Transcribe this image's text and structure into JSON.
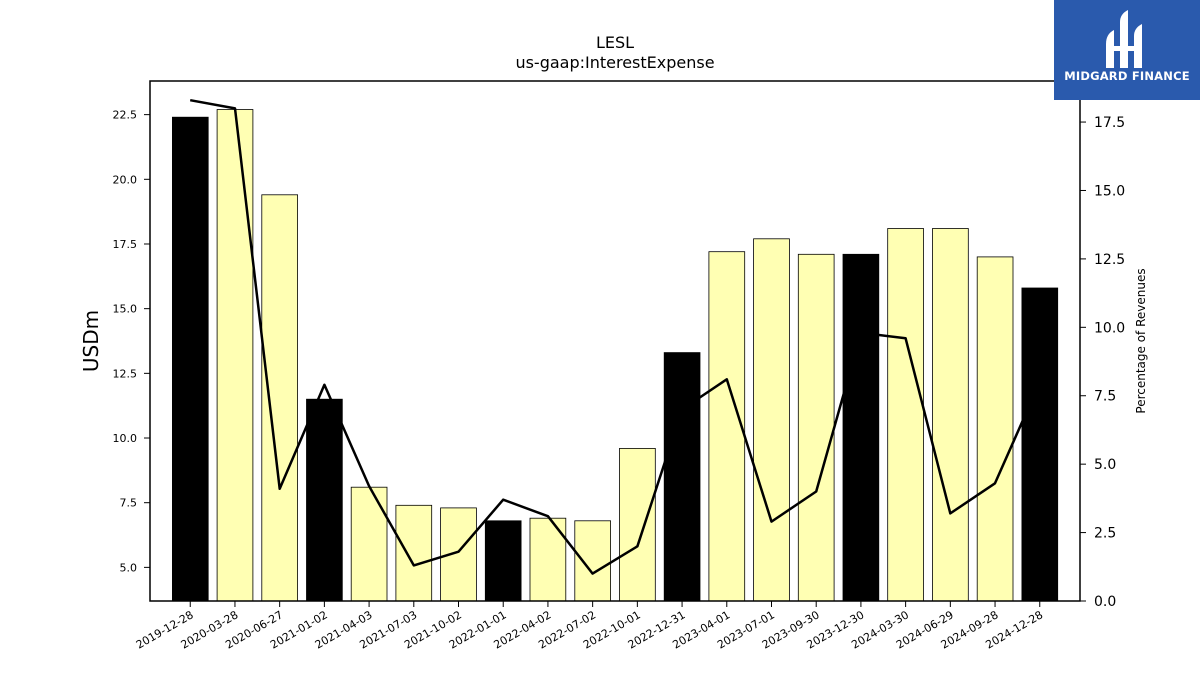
{
  "chart_data": {
    "type": "bar",
    "title": "LESL",
    "subtitle": "us-gaap:InterestExpense",
    "ylabel": "USDm",
    "y2label": "Percentage of Revenues",
    "ylim": [
      3.7,
      23.8
    ],
    "y2lim": [
      0,
      19
    ],
    "yticks": [
      5.0,
      7.5,
      10.0,
      12.5,
      15.0,
      17.5,
      20.0,
      22.5
    ],
    "y2ticks": [
      0.0,
      2.5,
      5.0,
      7.5,
      10.0,
      12.5,
      15.0,
      17.5
    ],
    "categories": [
      "2019-12-28",
      "2020-03-28",
      "2020-06-27",
      "2021-01-02",
      "2021-04-03",
      "2021-07-03",
      "2021-10-02",
      "2022-01-01",
      "2022-04-02",
      "2022-07-02",
      "2022-10-01",
      "2022-12-31",
      "2023-04-01",
      "2023-07-01",
      "2023-09-30",
      "2023-12-30",
      "2024-03-30",
      "2024-06-29",
      "2024-09-28",
      "2024-12-28"
    ],
    "series": [
      {
        "type": "bar",
        "axis": "left",
        "values": [
          22.4,
          22.7,
          19.4,
          11.5,
          8.1,
          7.4,
          7.3,
          6.8,
          6.9,
          6.8,
          9.6,
          13.3,
          17.2,
          17.7,
          17.1,
          17.1,
          18.1,
          18.1,
          17.0,
          15.8
        ]
      },
      {
        "type": "line",
        "axis": "right",
        "values": [
          18.3,
          18.0,
          4.1,
          7.9,
          4.2,
          1.3,
          1.8,
          3.7,
          3.1,
          1.0,
          2.0,
          7.0,
          8.1,
          2.9,
          4.0,
          9.8,
          9.6,
          3.2,
          4.3,
          8.0
        ]
      }
    ],
    "bar_highlight_flags": [
      true,
      false,
      false,
      true,
      false,
      false,
      false,
      true,
      false,
      false,
      false,
      true,
      false,
      false,
      false,
      true,
      false,
      false,
      false,
      true
    ],
    "colors": {
      "bar_highlight": "#000000",
      "bar_normal": "#ffffb3",
      "line": "#000000"
    }
  },
  "logo": {
    "text": "MIDGARD FINANCE",
    "background": "#2a5aad"
  }
}
